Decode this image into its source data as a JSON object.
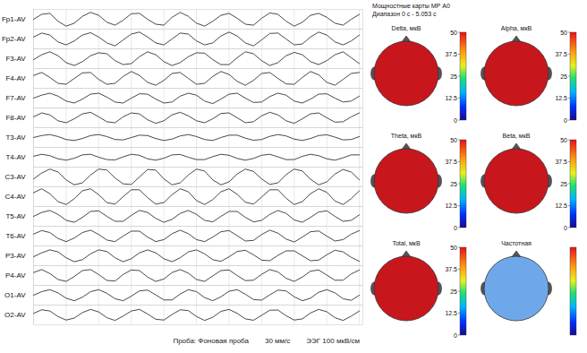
{
  "chart_data": {
    "type": "line",
    "color": "#1a1a1a",
    "grid": true,
    "tick_labels": false,
    "xlim": [
      0,
      5.053
    ],
    "xticks": [
      0,
      0.5,
      1,
      1.5,
      2,
      2.5,
      3,
      3.5,
      4,
      4.5,
      5
    ],
    "ylim": [
      -50,
      50
    ],
    "x": [
      0,
      0.125,
      0.25,
      0.375,
      0.5,
      0.625,
      0.75,
      0.875,
      1,
      1.125,
      1.25,
      1.375,
      1.5,
      1.625,
      1.75,
      1.875,
      2,
      2.125,
      2.25,
      2.375,
      2.5,
      2.625,
      2.75,
      2.875,
      3,
      3.125,
      3.25,
      3.375,
      3.5,
      3.625,
      3.75,
      3.875,
      4,
      4.125,
      4.25,
      4.375,
      4.5,
      4.625,
      4.75,
      4.875,
      5
    ],
    "series": [
      {
        "name": "Fp1-AV",
        "values": [
          0,
          25,
          30,
          -10,
          -35,
          -20,
          15,
          35,
          20,
          -15,
          -30,
          -5,
          28,
          30,
          0,
          -25,
          -30,
          10,
          35,
          15,
          -20,
          -35,
          -10,
          20,
          30,
          5,
          -25,
          -30,
          5,
          32,
          25,
          -10,
          -35,
          -15,
          20,
          30,
          10,
          -20,
          -30,
          0,
          25
        ]
      },
      {
        "name": "Fp2-AV",
        "values": [
          10,
          30,
          20,
          -15,
          -30,
          -10,
          20,
          32,
          10,
          -20,
          -35,
          -5,
          25,
          35,
          10,
          -20,
          -30,
          0,
          30,
          25,
          -10,
          -30,
          -20,
          15,
          35,
          15,
          -20,
          -35,
          -5,
          28,
          30,
          0,
          -30,
          -25,
          10,
          35,
          20,
          -15,
          -30,
          -10,
          20
        ]
      },
      {
        "name": "F3-AV",
        "values": [
          -5,
          20,
          35,
          15,
          -20,
          -35,
          -15,
          15,
          30,
          25,
          -10,
          -30,
          -25,
          10,
          35,
          20,
          -15,
          -35,
          -20,
          10,
          30,
          28,
          -5,
          -30,
          -30,
          5,
          35,
          25,
          -10,
          -35,
          -20,
          15,
          32,
          20,
          -15,
          -30,
          -10,
          20,
          35,
          5,
          -25
        ]
      },
      {
        "name": "F4-AV",
        "values": [
          15,
          30,
          5,
          -25,
          -30,
          0,
          28,
          30,
          -5,
          -30,
          -25,
          10,
          35,
          15,
          -20,
          -35,
          -10,
          25,
          30,
          0,
          -30,
          -25,
          10,
          35,
          20,
          -15,
          -35,
          -10,
          25,
          30,
          0,
          -28,
          -30,
          5,
          35,
          18,
          -20,
          -35,
          -5,
          25,
          30
        ]
      },
      {
        "name": "F7-AV",
        "values": [
          0,
          15,
          25,
          10,
          -15,
          -25,
          -5,
          20,
          25,
          5,
          -20,
          -25,
          0,
          22,
          20,
          -5,
          -25,
          -20,
          10,
          25,
          15,
          -15,
          -28,
          -5,
          20,
          25,
          0,
          -22,
          -20,
          8,
          25,
          15,
          -15,
          -25,
          -5,
          20,
          22,
          0,
          -20,
          -15,
          10
        ]
      },
      {
        "name": "F8-AV",
        "values": [
          5,
          25,
          15,
          -15,
          -25,
          -5,
          20,
          28,
          5,
          -20,
          -25,
          5,
          25,
          20,
          -10,
          -28,
          -15,
          15,
          28,
          10,
          -15,
          -25,
          -5,
          22,
          25,
          0,
          -25,
          -20,
          10,
          28,
          15,
          -15,
          -28,
          -5,
          20,
          25,
          0,
          -22,
          -20,
          5,
          25
        ]
      },
      {
        "name": "T3-AV",
        "values": [
          0,
          10,
          15,
          5,
          -10,
          -15,
          -5,
          10,
          15,
          5,
          -10,
          -12,
          0,
          12,
          10,
          -5,
          -15,
          -8,
          8,
          15,
          5,
          -10,
          -15,
          0,
          12,
          12,
          -3,
          -14,
          -10,
          6,
          15,
          8,
          -8,
          -15,
          -5,
          10,
          14,
          2,
          -12,
          -10,
          5
        ]
      },
      {
        "name": "T4-AV",
        "values": [
          5,
          15,
          8,
          -8,
          -15,
          -5,
          12,
          15,
          0,
          -12,
          -14,
          2,
          15,
          10,
          -8,
          -15,
          -5,
          12,
          14,
          0,
          -12,
          -12,
          3,
          15,
          10,
          -6,
          -15,
          -6,
          10,
          15,
          2,
          -12,
          -12,
          5,
          15,
          8,
          -8,
          -15,
          -3,
          12,
          12
        ]
      },
      {
        "name": "C3-AV",
        "values": [
          -10,
          20,
          40,
          25,
          -15,
          -40,
          -30,
          10,
          40,
          35,
          -5,
          -35,
          -38,
          0,
          38,
          35,
          -10,
          -40,
          -30,
          10,
          40,
          30,
          -15,
          -40,
          -25,
          15,
          40,
          28,
          -10,
          -38,
          -30,
          12,
          40,
          30,
          -12,
          -40,
          -25,
          15,
          38,
          25,
          -15
        ]
      },
      {
        "name": "C4-AV",
        "values": [
          20,
          40,
          15,
          -25,
          -40,
          -10,
          30,
          40,
          10,
          -30,
          -38,
          0,
          35,
          35,
          -5,
          -38,
          -30,
          10,
          40,
          25,
          -20,
          -40,
          -15,
          25,
          40,
          12,
          -28,
          -38,
          -2,
          35,
          35,
          -8,
          -40,
          -25,
          15,
          40,
          22,
          -22,
          -40,
          -10,
          30
        ]
      },
      {
        "name": "T5-AV",
        "values": [
          0,
          20,
          30,
          10,
          -20,
          -30,
          -5,
          25,
          28,
          0,
          -25,
          -25,
          5,
          30,
          20,
          -10,
          -30,
          -15,
          15,
          30,
          10,
          -20,
          -28,
          0,
          25,
          25,
          -5,
          -28,
          -20,
          10,
          30,
          15,
          -18,
          -30,
          -5,
          22,
          28,
          0,
          -25,
          -20,
          8
        ]
      },
      {
        "name": "T6-AV",
        "values": [
          10,
          28,
          18,
          -12,
          -28,
          -10,
          18,
          30,
          8,
          -20,
          -28,
          0,
          25,
          25,
          -5,
          -28,
          -18,
          12,
          30,
          12,
          -18,
          -28,
          -5,
          22,
          28,
          2,
          -25,
          -22,
          8,
          30,
          15,
          -15,
          -30,
          -5,
          22,
          26,
          0,
          -25,
          -18,
          10,
          28
        ]
      },
      {
        "name": "P3-AV",
        "values": [
          -5,
          15,
          30,
          20,
          -10,
          -30,
          -20,
          10,
          30,
          22,
          -10,
          -30,
          -15,
          15,
          30,
          15,
          -15,
          -30,
          -10,
          20,
          30,
          10,
          -20,
          -28,
          -5,
          22,
          28,
          5,
          -22,
          -25,
          2,
          25,
          25,
          0,
          -25,
          -22,
          5,
          28,
          20,
          -8,
          -28
        ]
      },
      {
        "name": "P4-AV",
        "values": [
          15,
          30,
          10,
          -20,
          -30,
          -5,
          25,
          30,
          5,
          -25,
          -28,
          5,
          28,
          25,
          -8,
          -30,
          -18,
          15,
          30,
          12,
          -20,
          -30,
          -2,
          25,
          28,
          0,
          -26,
          -24,
          6,
          30,
          18,
          -14,
          -30,
          -8,
          22,
          28,
          2,
          -24,
          -24,
          8,
          28
        ]
      },
      {
        "name": "O1-AV",
        "values": [
          0,
          18,
          28,
          12,
          -15,
          -28,
          -10,
          18,
          28,
          10,
          -18,
          -28,
          -5,
          22,
          26,
          2,
          -24,
          -24,
          6,
          28,
          18,
          -12,
          -28,
          -8,
          20,
          28,
          5,
          -22,
          -25,
          2,
          26,
          22,
          -8,
          -28,
          -15,
          15,
          28,
          12,
          -18,
          -26,
          0
        ]
      },
      {
        "name": "O2-AV",
        "values": [
          8,
          26,
          20,
          -8,
          -26,
          -16,
          12,
          28,
          15,
          -14,
          -28,
          -6,
          20,
          28,
          5,
          -22,
          -26,
          2,
          26,
          22,
          -8,
          -28,
          -12,
          18,
          28,
          8,
          -20,
          -27,
          -2,
          24,
          25,
          -4,
          -26,
          -20,
          10,
          28,
          16,
          -14,
          -28,
          -6,
          20
        ]
      }
    ]
  },
  "maps_panel": {
    "title": "Мощностные карты МР А0",
    "subtitle": "Диапазон 0 с - 5.053 с",
    "colorbar": {
      "range": [
        0,
        50
      ],
      "ticks": [
        0,
        12.5,
        25,
        37.5,
        50
      ]
    },
    "maps": [
      {
        "title": "Delta, мкВ",
        "color": "#c8161d"
      },
      {
        "title": "Alpha, мкВ",
        "color": "#c8161d"
      },
      {
        "title": "Theta, мкВ",
        "color": "#c8161d"
      },
      {
        "title": "Beta, мкВ",
        "color": "#c8161d"
      },
      {
        "title": "Total, мкВ",
        "color": "#c8161d"
      },
      {
        "title": "Частотная",
        "color": "#6fa8ea",
        "tick_labels": false
      }
    ]
  },
  "footer": [
    "Проба: Фоновая проба",
    "30 мм/с",
    "ЭЭГ 100 мкВ/см"
  ]
}
